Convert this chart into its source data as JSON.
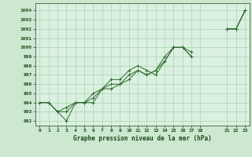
{
  "background_color": "#cce8d0",
  "plot_bg_color": "#daf0e0",
  "grid_color": "#aad4b0",
  "line_color": "#2d6a2d",
  "text_color": "#1a4a1a",
  "xlabel": "Graphe pression niveau de la mer (hPa)",
  "ylim": [
    991.5,
    1004.8
  ],
  "xlim": [
    -0.5,
    23.5
  ],
  "yticks": [
    992,
    993,
    994,
    995,
    996,
    997,
    998,
    999,
    1000,
    1001,
    1002,
    1003,
    1004
  ],
  "xtick_positions": [
    0,
    1,
    2,
    3,
    4,
    5,
    6,
    7,
    8,
    9,
    10,
    11,
    12,
    13,
    14,
    15,
    16,
    17,
    18,
    21,
    22,
    23
  ],
  "xtick_labels": [
    "0",
    "1",
    "2",
    "3",
    "4",
    "5",
    "6",
    "7",
    "8",
    "9",
    "10",
    "11",
    "12",
    "13",
    "14",
    "15",
    "16",
    "17",
    "18",
    "21",
    "22",
    "23"
  ],
  "series": [
    [
      994.0,
      994.0,
      993.0,
      992.0,
      994.0,
      994.0,
      994.0,
      995.5,
      995.5,
      996.0,
      996.5,
      997.5,
      997.0,
      997.5,
      999.0,
      1000.0,
      1000.0,
      999.0,
      null,
      null,
      null,
      1002.0,
      1002.0,
      1004.0
    ],
    [
      994.0,
      994.0,
      993.0,
      993.5,
      994.0,
      994.0,
      995.0,
      995.5,
      996.5,
      996.5,
      997.5,
      998.0,
      997.5,
      997.0,
      998.5,
      1000.0,
      1000.0,
      999.5,
      null,
      null,
      null,
      1002.0,
      1002.0,
      1004.0
    ],
    [
      994.0,
      994.0,
      993.0,
      993.0,
      994.0,
      994.0,
      994.5,
      995.5,
      996.0,
      996.0,
      997.0,
      997.5,
      997.0,
      997.5,
      998.5,
      1000.0,
      1000.0,
      999.0,
      null,
      null,
      null,
      1002.0,
      1002.0,
      1004.0
    ]
  ]
}
